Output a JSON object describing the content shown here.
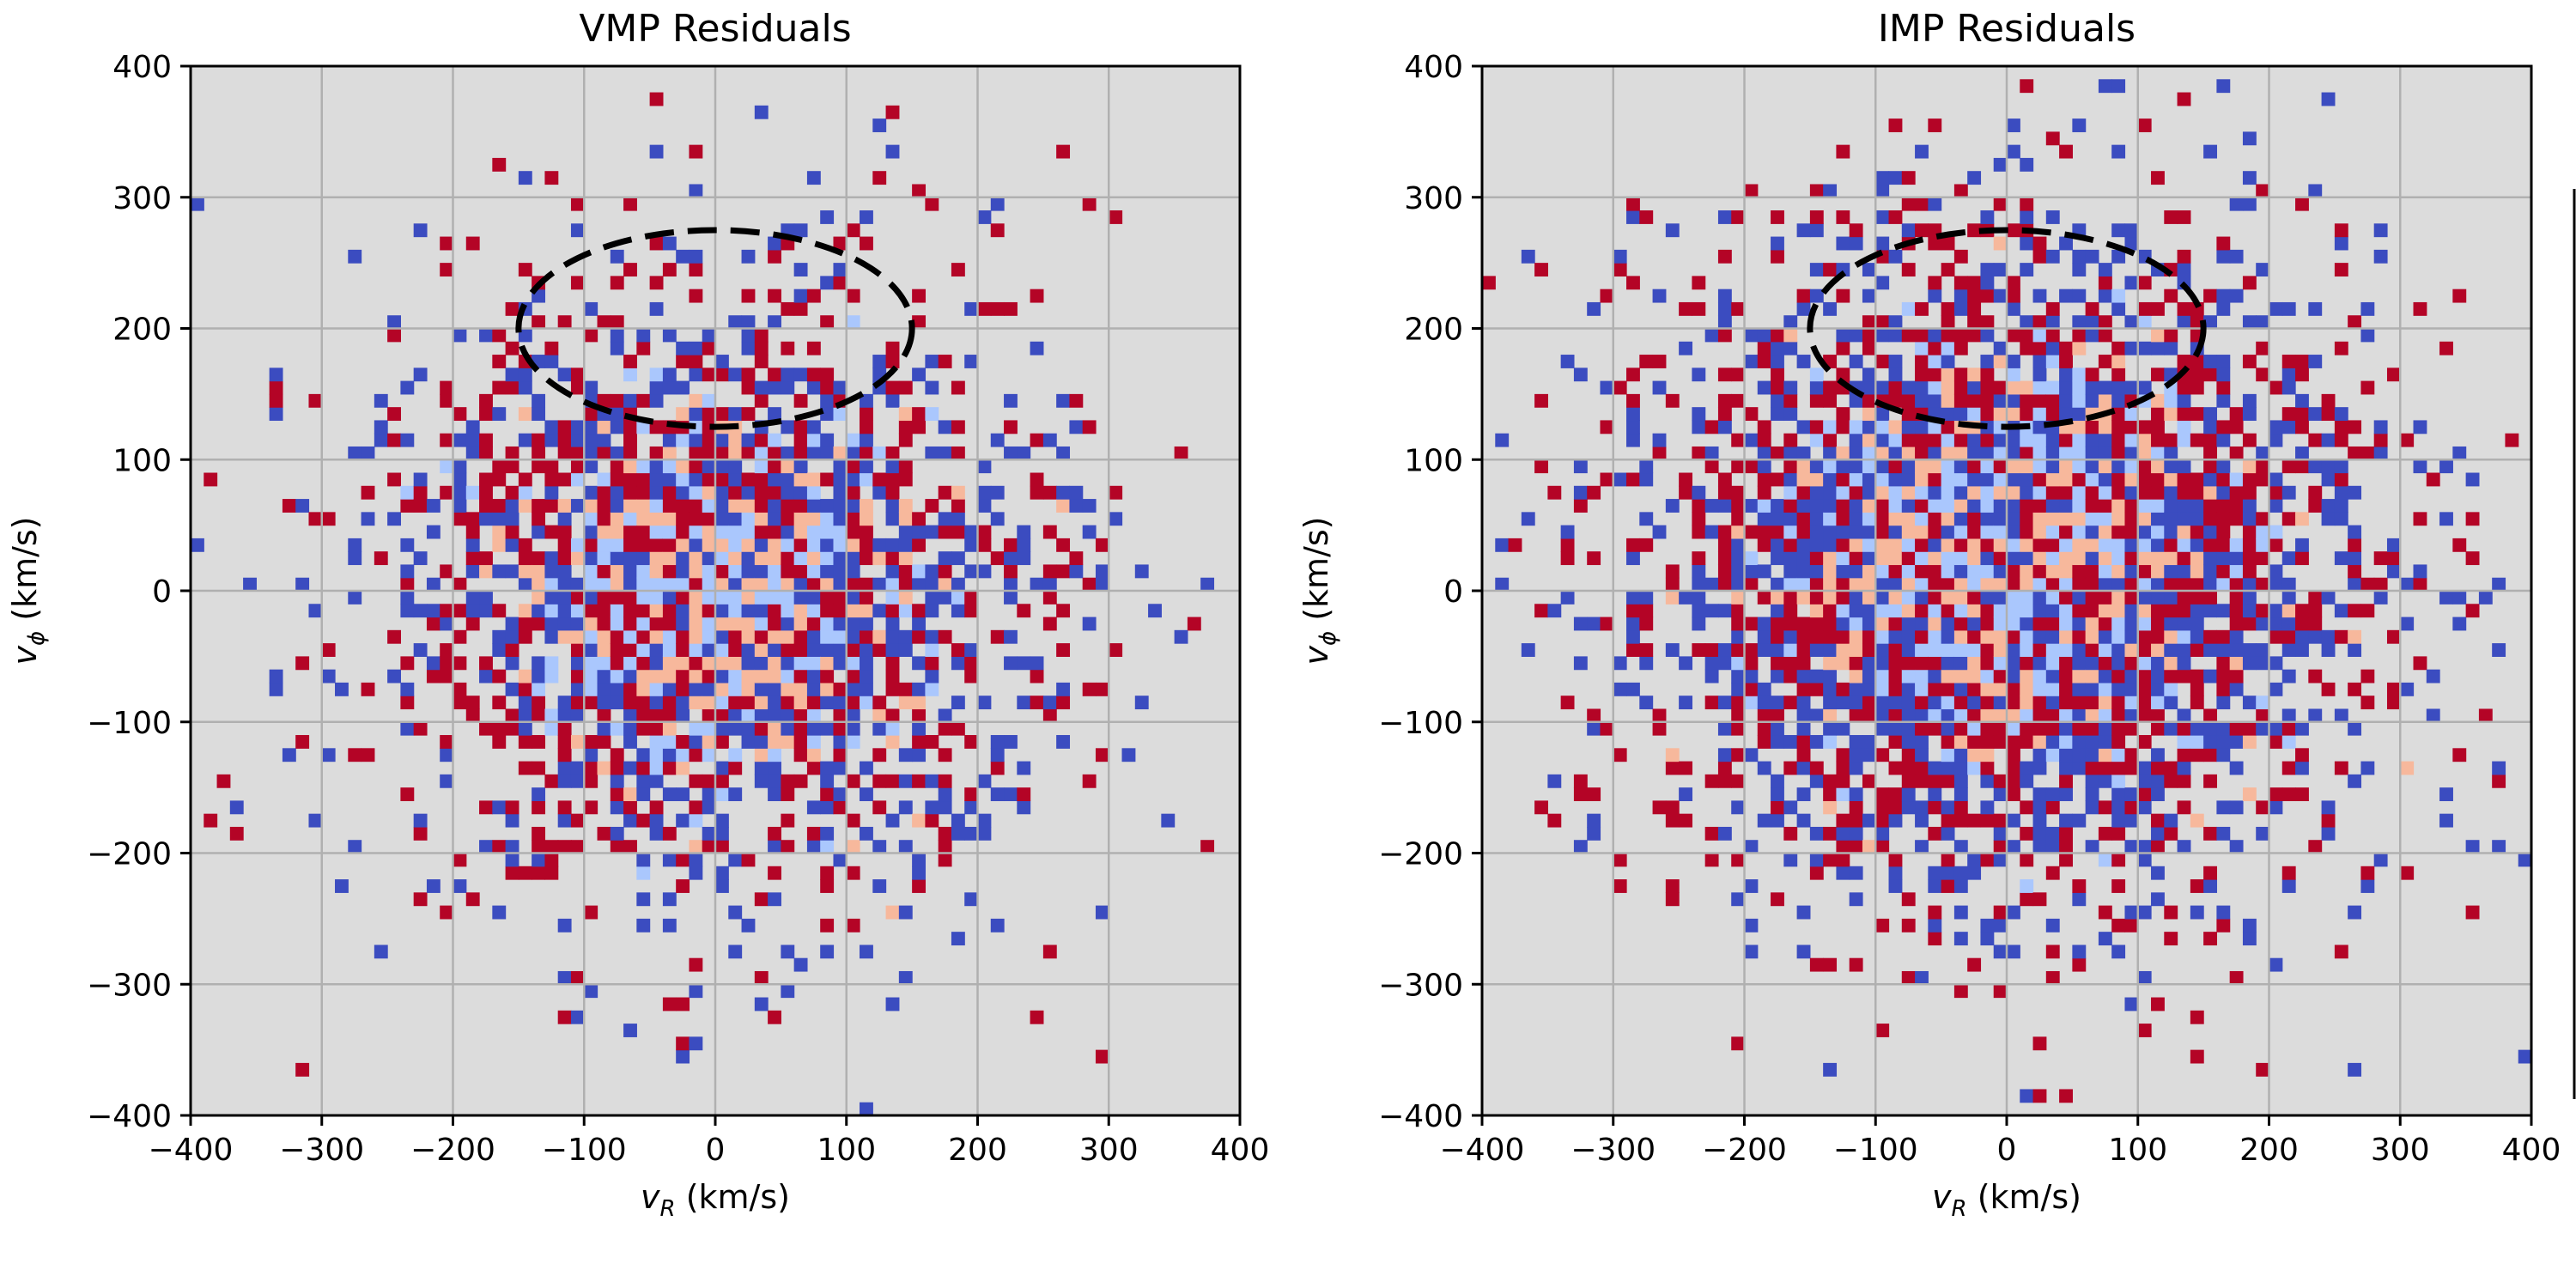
{
  "chart_data": [
    {
      "type": "heatmap",
      "title": "VMP Residuals",
      "xlabel": {
        "main": "v",
        "sub": "R",
        "unit": " (km/s)"
      },
      "ylabel": {
        "main": "v",
        "sub": "ϕ",
        "unit": " (km/s)"
      },
      "xlim": [
        -400,
        400
      ],
      "ylim": [
        -400,
        400
      ],
      "xticks": [
        -400,
        -300,
        -200,
        -100,
        0,
        100,
        200,
        300,
        400
      ],
      "yticks": [
        -400,
        -300,
        -200,
        -100,
        0,
        100,
        200,
        300,
        400
      ],
      "xtick_labels": [
        "−400",
        "−300",
        "−200",
        "−100",
        "0",
        "100",
        "200",
        "300",
        "400"
      ],
      "ytick_labels": [
        "−400",
        "−300",
        "−200",
        "−100",
        "0",
        "100",
        "200",
        "300",
        "400"
      ],
      "grid": true,
      "bin_size": 10,
      "background_color": "#dcdcdc",
      "colormap": "coolwarm",
      "palette": [
        "#3b4cc0",
        "#aac7fd",
        "#f7b89c",
        "#b40426"
      ],
      "distribution": {
        "center": [
          0,
          0
        ],
        "sigma": [
          150,
          140
        ],
        "occupancy": 1.25,
        "seed": 11
      },
      "dashed_ellipse": {
        "center": [
          0,
          200
        ],
        "semi_axes": [
          150,
          75
        ]
      }
    },
    {
      "type": "heatmap",
      "title": "IMP Residuals",
      "xlabel": {
        "main": "v",
        "sub": "R",
        "unit": " (km/s)"
      },
      "ylabel": {
        "main": "v",
        "sub": "ϕ",
        "unit": " (km/s)"
      },
      "xlim": [
        -400,
        400
      ],
      "ylim": [
        -400,
        400
      ],
      "xticks": [
        -400,
        -300,
        -200,
        -100,
        0,
        100,
        200,
        300,
        400
      ],
      "yticks": [
        -400,
        -300,
        -200,
        -100,
        0,
        100,
        200,
        300,
        400
      ],
      "xtick_labels": [
        "−400",
        "−300",
        "−200",
        "−100",
        "0",
        "100",
        "200",
        "300",
        "400"
      ],
      "ytick_labels": [
        "−400",
        "−300",
        "−200",
        "−100",
        "0",
        "100",
        "200",
        "300",
        "400"
      ],
      "grid": true,
      "bin_size": 10,
      "background_color": "#dcdcdc",
      "colormap": "coolwarm",
      "palette": [
        "#3b4cc0",
        "#aac7fd",
        "#f7b89c",
        "#b40426"
      ],
      "distribution": {
        "center": [
          0,
          20
        ],
        "sigma": [
          170,
          150
        ],
        "occupancy": 1.55,
        "seed": 29
      },
      "dashed_ellipse": {
        "center": [
          0,
          200
        ],
        "semi_axes": [
          150,
          75
        ]
      }
    }
  ]
}
